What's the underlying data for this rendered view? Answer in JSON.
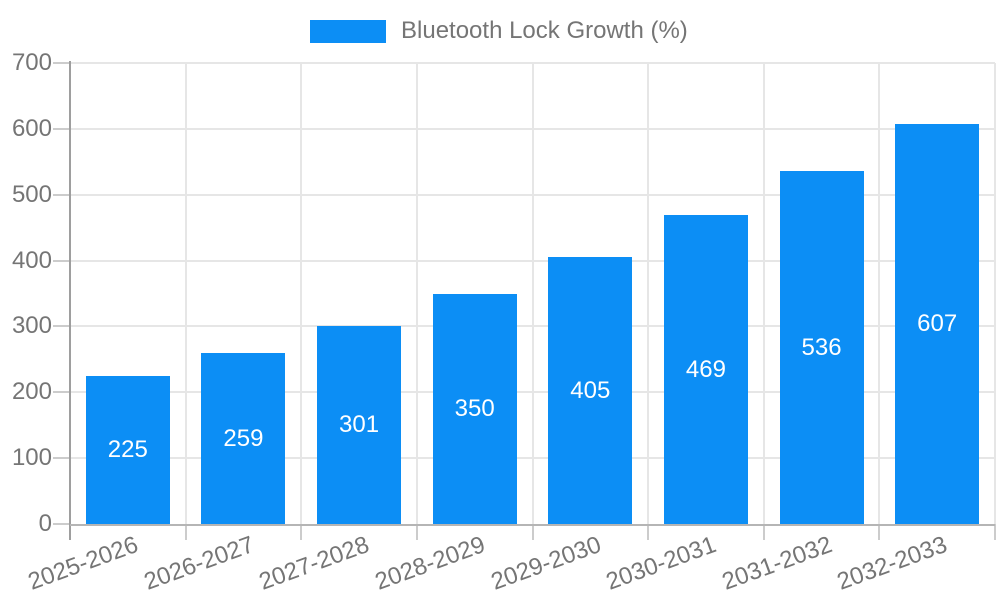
{
  "chart_data": {
    "type": "bar",
    "title": "",
    "legend_label": "Bluetooth Lock Growth (%)",
    "legend_position": "top",
    "categories": [
      "2025-2026",
      "2026-2027",
      "2027-2028",
      "2028-2029",
      "2029-2030",
      "2030-2031",
      "2031-2032",
      "2032-2033"
    ],
    "values": [
      225,
      259,
      301,
      350,
      405,
      469,
      536,
      607
    ],
    "xlabel": "",
    "ylabel": "",
    "ylim": [
      0,
      700
    ],
    "yticks": [
      0,
      100,
      200,
      300,
      400,
      500,
      600,
      700
    ],
    "grid": true,
    "bar_labels_visible": true,
    "x_labels_rotated": true,
    "colors": {
      "bar": "#0c8ef5",
      "bar_label": "#ffffff",
      "axis_text": "#757575",
      "grid": "#e6e6e6",
      "tick": "#cccccc",
      "x_axis": "#b5b5b5",
      "y_axis": "#9e9e9e"
    }
  }
}
